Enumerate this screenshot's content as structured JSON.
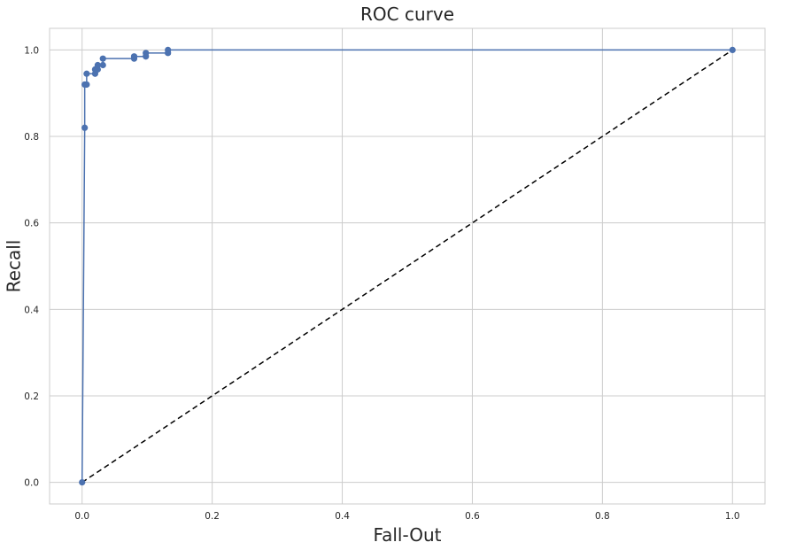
{
  "chart_data": {
    "type": "line",
    "title": "ROC curve",
    "xlabel": "Fall-Out",
    "ylabel": "Recall",
    "xlim": [
      -0.05,
      1.05
    ],
    "ylim": [
      -0.05,
      1.05
    ],
    "xticks": [
      0.0,
      0.2,
      0.4,
      0.6,
      0.8,
      1.0
    ],
    "yticks": [
      0.0,
      0.2,
      0.4,
      0.6,
      0.8,
      1.0
    ],
    "xtick_labels": [
      "0.0",
      "0.2",
      "0.4",
      "0.6",
      "0.8",
      "1.0"
    ],
    "ytick_labels": [
      "0.0",
      "0.2",
      "0.4",
      "0.6",
      "0.8",
      "1.0"
    ],
    "grid": true,
    "series": [
      {
        "style": "solid line with circle markers",
        "color": "#4c72b0",
        "x": [
          0.0,
          0.004,
          0.004,
          0.007,
          0.007,
          0.02,
          0.02,
          0.024,
          0.024,
          0.032,
          0.032,
          0.08,
          0.08,
          0.098,
          0.098,
          0.132,
          0.132,
          1.0
        ],
        "y": [
          0.0,
          0.82,
          0.92,
          0.92,
          0.945,
          0.945,
          0.955,
          0.955,
          0.965,
          0.965,
          0.98,
          0.98,
          0.985,
          0.985,
          0.993,
          0.993,
          1.0,
          1.0
        ]
      },
      {
        "style": "dashed diagonal",
        "color": "#000000",
        "x": [
          0.0,
          1.0
        ],
        "y": [
          0.0,
          1.0
        ]
      }
    ]
  }
}
